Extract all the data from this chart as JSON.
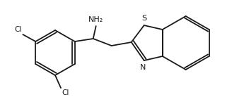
{
  "bg_color": "#ffffff",
  "line_color": "#1a1a1a",
  "hetero_color": "#1a1a1a",
  "label_S": "S",
  "label_N": "N",
  "label_NH2": "NH₂",
  "label_Cl1": "Cl",
  "label_Cl2": "Cl",
  "figsize": [
    3.28,
    1.55
  ],
  "dpi": 100,
  "lw": 1.3
}
